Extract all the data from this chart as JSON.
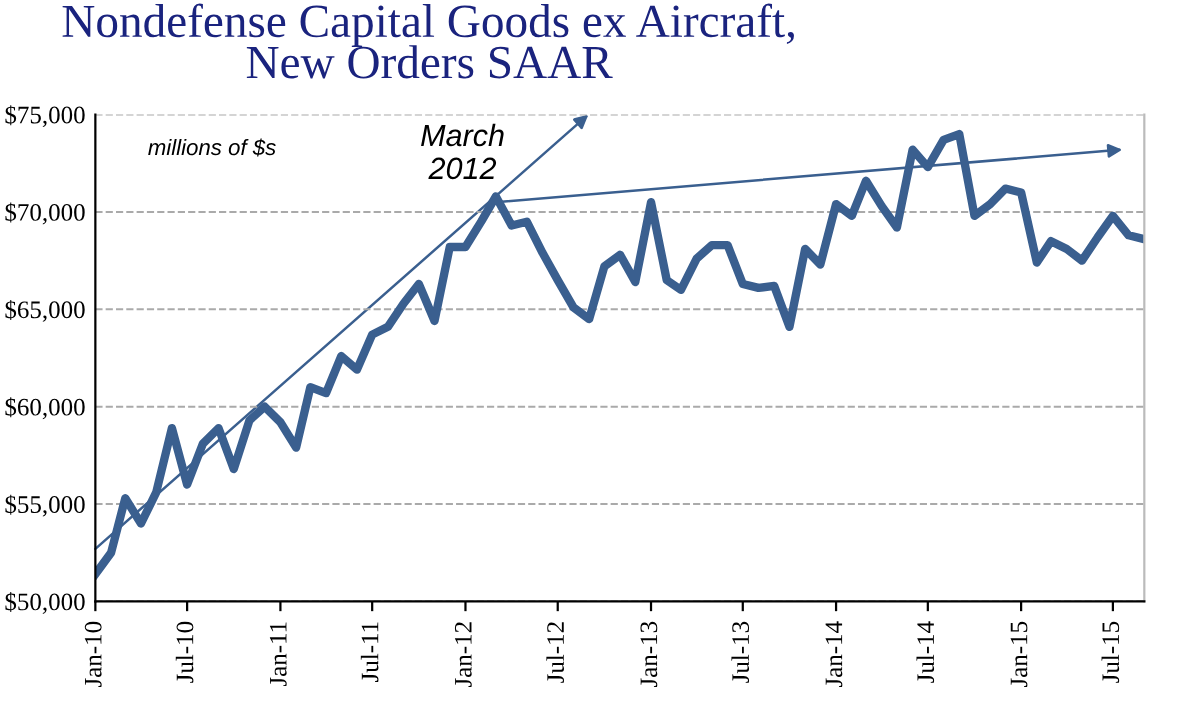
{
  "chart_data": {
    "type": "line",
    "title": "Nondefense Capital Goods ex Aircraft,\nNew Orders SAAR",
    "x": [
      "2010-01",
      "2010-02",
      "2010-03",
      "2010-04",
      "2010-05",
      "2010-06",
      "2010-07",
      "2010-08",
      "2010-09",
      "2010-10",
      "2010-11",
      "2010-12",
      "2011-01",
      "2011-02",
      "2011-03",
      "2011-04",
      "2011-05",
      "2011-06",
      "2011-07",
      "2011-08",
      "2011-09",
      "2011-10",
      "2011-11",
      "2011-12",
      "2012-01",
      "2012-02",
      "2012-03",
      "2012-04",
      "2012-05",
      "2012-06",
      "2012-07",
      "2012-08",
      "2012-09",
      "2012-10",
      "2012-11",
      "2012-12",
      "2013-01",
      "2013-02",
      "2013-03",
      "2013-04",
      "2013-05",
      "2013-06",
      "2013-07",
      "2013-08",
      "2013-09",
      "2013-10",
      "2013-11",
      "2013-12",
      "2014-01",
      "2014-02",
      "2014-03",
      "2014-04",
      "2014-05",
      "2014-06",
      "2014-07",
      "2014-08",
      "2014-09",
      "2014-10",
      "2014-11",
      "2014-12",
      "2015-01",
      "2015-02",
      "2015-03",
      "2015-04",
      "2015-05",
      "2015-06",
      "2015-07",
      "2015-08",
      "2015-09"
    ],
    "series": [
      {
        "color": "#3a5f8f",
        "values": [
          51400,
          52500,
          55300,
          54000,
          55600,
          58900,
          56000,
          58100,
          58900,
          56800,
          59300,
          60000,
          59200,
          57900,
          61000,
          60700,
          62600,
          61900,
          63700,
          64100,
          65300,
          66300,
          64400,
          68200,
          68200,
          69500,
          70800,
          69300,
          69500,
          67900,
          66500,
          65100,
          64500,
          67200,
          67800,
          66400,
          70500,
          66500,
          66000,
          67600,
          68300,
          68300,
          66300,
          66100,
          66200,
          64100,
          68100,
          67300,
          70400,
          69800,
          71600,
          70300,
          69200,
          73200,
          72300,
          73700,
          74000,
          69800,
          70400,
          71200,
          71000,
          67400,
          68500,
          68100,
          67500,
          68700,
          69800,
          68800,
          68600
        ]
      }
    ],
    "xlim": [
      "2010-01",
      "2015-09"
    ],
    "xticks": [
      {
        "value": "2010-01",
        "label": "Jan-10"
      },
      {
        "value": "2010-07",
        "label": "Jul-10"
      },
      {
        "value": "2011-01",
        "label": "Jan-11"
      },
      {
        "value": "2011-07",
        "label": "Jul-11"
      },
      {
        "value": "2012-01",
        "label": "Jan-12"
      },
      {
        "value": "2012-07",
        "label": "Jul-12"
      },
      {
        "value": "2013-01",
        "label": "Jan-13"
      },
      {
        "value": "2013-07",
        "label": "Jul-13"
      },
      {
        "value": "2014-01",
        "label": "Jan-14"
      },
      {
        "value": "2014-07",
        "label": "Jul-14"
      },
      {
        "value": "2015-01",
        "label": "Jan-15"
      },
      {
        "value": "2015-07",
        "label": "Jul-15"
      }
    ],
    "ylim": [
      50000,
      75000
    ],
    "yticks": [
      {
        "value": 50000,
        "label": "$50,000"
      },
      {
        "value": 55000,
        "label": "$55,000"
      },
      {
        "value": 60000,
        "label": "$60,000"
      },
      {
        "value": 65000,
        "label": "$65,000"
      },
      {
        "value": 70000,
        "label": "$70,000"
      },
      {
        "value": 75000,
        "label": "$75,000"
      }
    ],
    "grid": "y",
    "marker": "none",
    "line_style": "solid",
    "legend": false,
    "annotations": [
      "millions of $s",
      {
        "text": "March\n2012",
        "x": "2012-03",
        "y": 70800
      }
    ]
  }
}
